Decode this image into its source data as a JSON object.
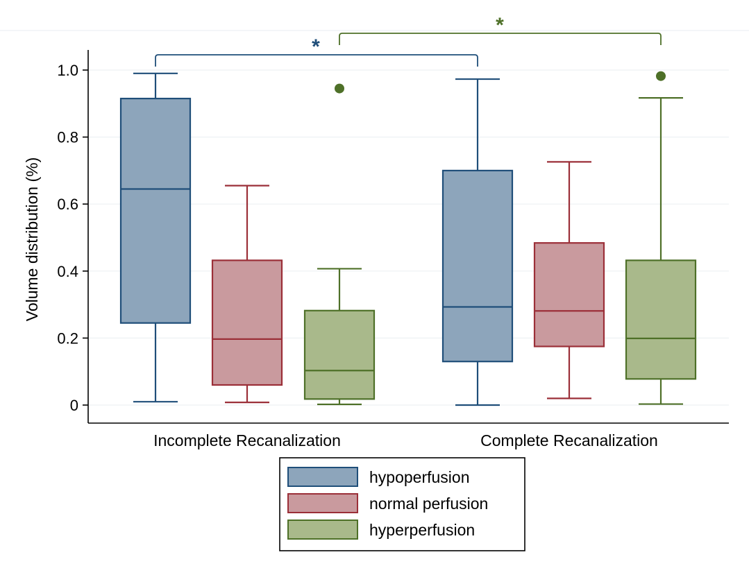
{
  "chart_data": {
    "type": "boxplot",
    "title": "",
    "xlabel": "",
    "ylabel": "Volume distribution (%)",
    "ylim": [
      0,
      1.0
    ],
    "yticks": [
      0,
      0.2,
      0.4,
      0.6,
      0.8,
      1.0
    ],
    "ytick_labels": [
      "0",
      "0.2",
      "0.4",
      "0.6",
      "0.8",
      "1.0"
    ],
    "categories": [
      "Incomplete Recanalization",
      "Complete Recanalization"
    ],
    "grid": true,
    "legend_position": "bottom",
    "series": [
      {
        "name": "hypoperfusion",
        "fill": "#8da5bb",
        "stroke": "#1f4e79",
        "boxes": [
          {
            "whisker_low": 0.01,
            "q1": 0.245,
            "median": 0.645,
            "q3": 0.915,
            "whisker_high": 0.99,
            "outliers": []
          },
          {
            "whisker_low": 0.0,
            "q1": 0.13,
            "median": 0.293,
            "q3": 0.7,
            "whisker_high": 0.973,
            "outliers": []
          }
        ]
      },
      {
        "name": "normal perfusion",
        "fill": "#c99a9e",
        "stroke": "#9b2f38",
        "boxes": [
          {
            "whisker_low": 0.008,
            "q1": 0.06,
            "median": 0.197,
            "q3": 0.432,
            "whisker_high": 0.655,
            "outliers": []
          },
          {
            "whisker_low": 0.02,
            "q1": 0.175,
            "median": 0.281,
            "q3": 0.484,
            "whisker_high": 0.726,
            "outliers": []
          }
        ]
      },
      {
        "name": "hyperperfusion",
        "fill": "#a9b98b",
        "stroke": "#4e7028",
        "boxes": [
          {
            "whisker_low": 0.002,
            "q1": 0.018,
            "median": 0.103,
            "q3": 0.282,
            "whisker_high": 0.407,
            "outliers": [
              0.945
            ]
          },
          {
            "whisker_low": 0.003,
            "q1": 0.078,
            "median": 0.199,
            "q3": 0.432,
            "whisker_high": 0.917,
            "outliers": [
              0.982
            ]
          }
        ]
      }
    ],
    "annotations": [
      {
        "text": "*",
        "color": "#1f4e79",
        "from": {
          "category": 0,
          "series": 0
        },
        "to": {
          "category": 1,
          "series": 0
        }
      },
      {
        "text": "*",
        "color": "#4e7028",
        "from": {
          "category": 0,
          "series": 2
        },
        "to": {
          "category": 1,
          "series": 2
        }
      }
    ]
  }
}
